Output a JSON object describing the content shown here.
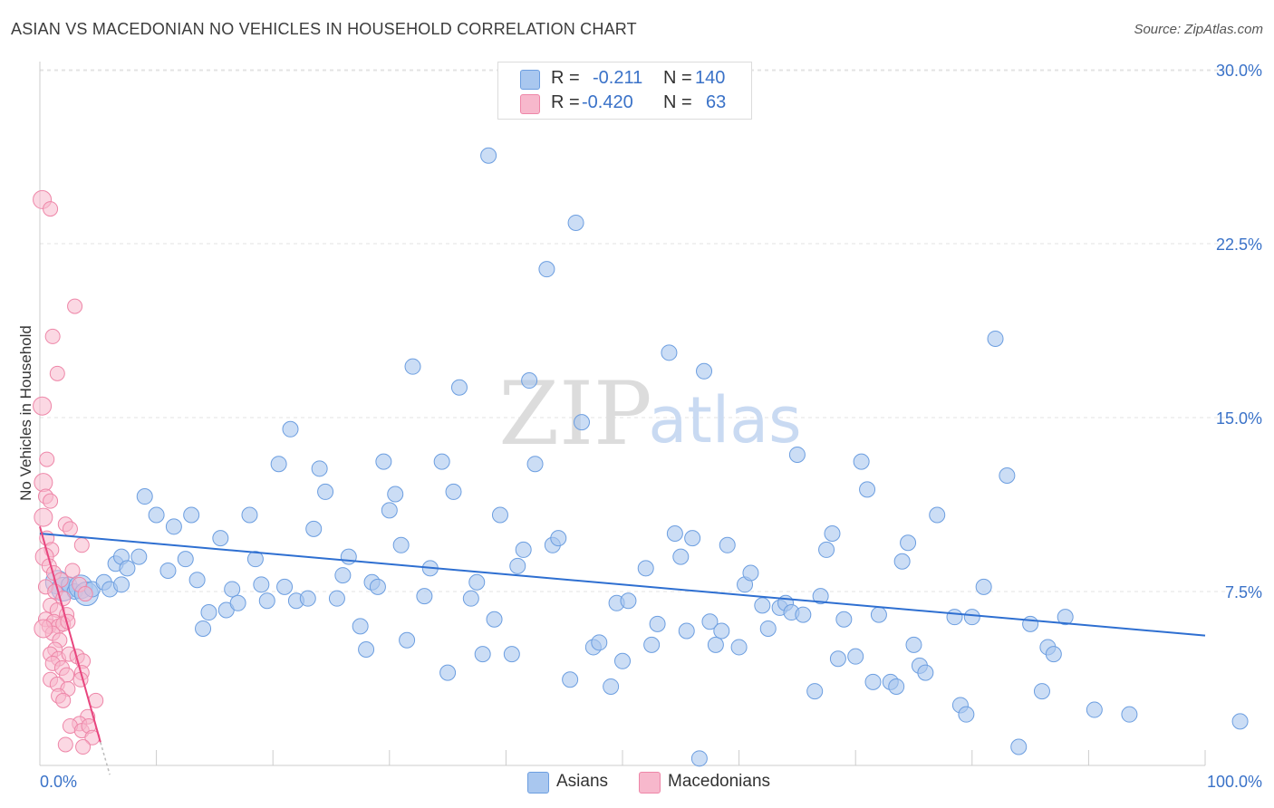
{
  "title": "ASIAN VS MACEDONIAN NO VEHICLES IN HOUSEHOLD CORRELATION CHART",
  "source": "Source: ZipAtlas.com",
  "watermark": {
    "zip": "ZIP",
    "atlas": "atlas"
  },
  "legend": {
    "rows": [
      {
        "r_label": "R =",
        "r_value": "-0.211",
        "n_label": "N =",
        "n_value": "140",
        "color": "#a9c7ef"
      },
      {
        "r_label": "R =",
        "r_value": "-0.420",
        "n_label": "N =",
        "n_value": "63",
        "color": "#f7b8cc"
      }
    ]
  },
  "bottom_legend": [
    {
      "label": "Asians",
      "color": "#a9c7ef"
    },
    {
      "label": "Macedonians",
      "color": "#f7b8cc"
    }
  ],
  "chart_data": {
    "type": "scatter",
    "ylabel": "No Vehicles in Household",
    "xlabel": "",
    "xlim": [
      0,
      100
    ],
    "ylim": [
      0,
      30
    ],
    "x_tick_labels": [
      "0.0%",
      "100.0%"
    ],
    "y_tick_labels": [
      "7.5%",
      "15.0%",
      "22.5%",
      "30.0%"
    ],
    "y_tick_values": [
      7.5,
      15.0,
      22.5,
      30.0
    ],
    "colors": {
      "asians_fill": "#a9c7ef",
      "asians_stroke": "#6c9ee0",
      "asians_line": "#2e6fd1",
      "macedonians_fill": "#f7b8cc",
      "macedonians_stroke": "#ee86a8",
      "macedonians_line": "#e8457e",
      "grid": "#e3e3e3",
      "tick_label": "#3a72c8"
    },
    "series": [
      {
        "name": "Asians",
        "trend": {
          "x": [
            0,
            100
          ],
          "y": [
            10.0,
            5.6
          ]
        },
        "points": [
          [
            1.5,
            7.9
          ],
          [
            2.0,
            7.6
          ],
          [
            2.5,
            7.8
          ],
          [
            3.0,
            7.5
          ],
          [
            3.5,
            7.7
          ],
          [
            4.0,
            7.4
          ],
          [
            4.5,
            7.6
          ],
          [
            5.5,
            7.9
          ],
          [
            6.0,
            7.6
          ],
          [
            7.0,
            7.8
          ],
          [
            6.5,
            8.7
          ],
          [
            7.0,
            9.0
          ],
          [
            7.5,
            8.5
          ],
          [
            8.5,
            9.0
          ],
          [
            9.0,
            11.6
          ],
          [
            10.0,
            10.8
          ],
          [
            11.0,
            8.4
          ],
          [
            11.5,
            10.3
          ],
          [
            12.5,
            8.9
          ],
          [
            13.0,
            10.8
          ],
          [
            13.5,
            8.0
          ],
          [
            14.0,
            5.9
          ],
          [
            14.5,
            6.6
          ],
          [
            15.5,
            9.8
          ],
          [
            16.0,
            6.7
          ],
          [
            16.5,
            7.6
          ],
          [
            17.0,
            7.0
          ],
          [
            18.0,
            10.8
          ],
          [
            18.5,
            8.9
          ],
          [
            19.0,
            7.8
          ],
          [
            19.5,
            7.1
          ],
          [
            20.5,
            13.0
          ],
          [
            21.0,
            7.7
          ],
          [
            21.5,
            14.5
          ],
          [
            22.0,
            7.1
          ],
          [
            23.0,
            7.2
          ],
          [
            23.5,
            10.2
          ],
          [
            24.0,
            12.8
          ],
          [
            24.5,
            11.8
          ],
          [
            25.5,
            7.2
          ],
          [
            26.0,
            8.2
          ],
          [
            26.5,
            9.0
          ],
          [
            27.5,
            6.0
          ],
          [
            28.0,
            5.0
          ],
          [
            28.5,
            7.9
          ],
          [
            29.0,
            7.7
          ],
          [
            29.5,
            13.1
          ],
          [
            30.0,
            11.0
          ],
          [
            30.5,
            11.7
          ],
          [
            31.0,
            9.5
          ],
          [
            31.5,
            5.4
          ],
          [
            32.0,
            17.2
          ],
          [
            33.0,
            7.3
          ],
          [
            33.5,
            8.5
          ],
          [
            34.5,
            13.1
          ],
          [
            35.0,
            4.0
          ],
          [
            35.5,
            11.8
          ],
          [
            36.0,
            16.3
          ],
          [
            37.0,
            7.2
          ],
          [
            37.5,
            7.9
          ],
          [
            38.0,
            4.8
          ],
          [
            38.5,
            26.3
          ],
          [
            39.0,
            6.3
          ],
          [
            39.5,
            10.8
          ],
          [
            40.5,
            4.8
          ],
          [
            41.0,
            8.6
          ],
          [
            41.5,
            9.3
          ],
          [
            42.0,
            16.6
          ],
          [
            42.5,
            13.0
          ],
          [
            43.5,
            21.4
          ],
          [
            44.0,
            9.5
          ],
          [
            44.5,
            9.8
          ],
          [
            45.5,
            3.7
          ],
          [
            46.0,
            23.4
          ],
          [
            46.5,
            14.8
          ],
          [
            47.5,
            5.1
          ],
          [
            48.0,
            5.3
          ],
          [
            49.0,
            3.4
          ],
          [
            49.5,
            7.0
          ],
          [
            50.0,
            4.5
          ],
          [
            50.5,
            7.1
          ],
          [
            52.0,
            8.5
          ],
          [
            52.5,
            5.2
          ],
          [
            53.0,
            6.1
          ],
          [
            54.0,
            17.8
          ],
          [
            54.5,
            10.0
          ],
          [
            55.0,
            9.0
          ],
          [
            55.5,
            5.8
          ],
          [
            56.0,
            9.8
          ],
          [
            57.0,
            17.0
          ],
          [
            57.5,
            6.2
          ],
          [
            58.0,
            5.2
          ],
          [
            58.5,
            5.8
          ],
          [
            59.0,
            9.5
          ],
          [
            60.0,
            5.1
          ],
          [
            60.5,
            7.8
          ],
          [
            61.0,
            8.3
          ],
          [
            62.0,
            6.9
          ],
          [
            62.5,
            5.9
          ],
          [
            63.5,
            6.8
          ],
          [
            64.0,
            7.0
          ],
          [
            64.5,
            6.6
          ],
          [
            65.0,
            13.4
          ],
          [
            65.5,
            6.5
          ],
          [
            66.5,
            3.2
          ],
          [
            67.0,
            7.3
          ],
          [
            67.5,
            9.3
          ],
          [
            68.0,
            10.0
          ],
          [
            68.5,
            4.6
          ],
          [
            69.0,
            6.3
          ],
          [
            70.0,
            4.7
          ],
          [
            70.5,
            13.1
          ],
          [
            71.0,
            11.9
          ],
          [
            71.5,
            3.6
          ],
          [
            72.0,
            6.5
          ],
          [
            73.0,
            3.6
          ],
          [
            73.5,
            3.4
          ],
          [
            74.0,
            8.8
          ],
          [
            74.5,
            9.6
          ],
          [
            75.0,
            5.2
          ],
          [
            75.5,
            4.3
          ],
          [
            76.0,
            4.0
          ],
          [
            77.0,
            10.8
          ],
          [
            78.5,
            6.4
          ],
          [
            79.0,
            2.6
          ],
          [
            79.5,
            2.2
          ],
          [
            80.0,
            6.4
          ],
          [
            81.0,
            7.7
          ],
          [
            82.0,
            18.4
          ],
          [
            83.0,
            12.5
          ],
          [
            84.0,
            0.8
          ],
          [
            85.0,
            6.1
          ],
          [
            86.0,
            3.2
          ],
          [
            86.5,
            5.1
          ],
          [
            87.0,
            4.8
          ],
          [
            88.0,
            6.4
          ],
          [
            90.5,
            2.4
          ],
          [
            93.5,
            2.2
          ],
          [
            103.0,
            1.9
          ],
          [
            56.6,
            0.3
          ]
        ]
      },
      {
        "name": "Macedonians",
        "trend": {
          "x": [
            0,
            5.2
          ],
          "y": [
            10.3,
            1.0
          ],
          "dash_x": [
            5.2,
            6.0
          ],
          "dash_y": [
            1.0,
            -0.4
          ]
        },
        "points": [
          [
            0.2,
            24.4
          ],
          [
            0.9,
            24.0
          ],
          [
            3.0,
            19.8
          ],
          [
            1.1,
            18.5
          ],
          [
            1.5,
            16.9
          ],
          [
            0.2,
            15.5
          ],
          [
            0.6,
            13.2
          ],
          [
            0.3,
            12.2
          ],
          [
            0.5,
            11.6
          ],
          [
            0.9,
            11.4
          ],
          [
            0.3,
            10.7
          ],
          [
            2.2,
            10.4
          ],
          [
            2.6,
            10.2
          ],
          [
            0.6,
            9.8
          ],
          [
            1.0,
            9.3
          ],
          [
            3.6,
            9.5
          ],
          [
            0.4,
            9.0
          ],
          [
            0.8,
            8.6
          ],
          [
            1.2,
            8.3
          ],
          [
            1.8,
            8.0
          ],
          [
            2.8,
            8.4
          ],
          [
            3.4,
            7.8
          ],
          [
            0.5,
            7.7
          ],
          [
            1.3,
            7.5
          ],
          [
            2.0,
            7.2
          ],
          [
            3.9,
            7.4
          ],
          [
            0.9,
            6.9
          ],
          [
            1.5,
            6.7
          ],
          [
            2.3,
            6.5
          ],
          [
            0.5,
            6.3
          ],
          [
            0.8,
            6.0
          ],
          [
            1.2,
            6.2
          ],
          [
            1.6,
            6.0
          ],
          [
            2.0,
            6.1
          ],
          [
            2.4,
            6.2
          ],
          [
            1.1,
            5.7
          ],
          [
            1.7,
            5.4
          ],
          [
            1.3,
            5.0
          ],
          [
            0.9,
            4.8
          ],
          [
            1.6,
            4.6
          ],
          [
            2.5,
            4.8
          ],
          [
            3.2,
            4.7
          ],
          [
            3.7,
            4.5
          ],
          [
            1.1,
            4.4
          ],
          [
            1.9,
            4.2
          ],
          [
            0.9,
            3.7
          ],
          [
            2.3,
            3.9
          ],
          [
            3.6,
            4.0
          ],
          [
            1.5,
            3.5
          ],
          [
            2.4,
            3.3
          ],
          [
            3.5,
            3.7
          ],
          [
            1.6,
            3.0
          ],
          [
            2.0,
            2.8
          ],
          [
            4.8,
            2.8
          ],
          [
            4.1,
            2.1
          ],
          [
            3.4,
            1.8
          ],
          [
            2.6,
            1.7
          ],
          [
            3.6,
            1.5
          ],
          [
            4.2,
            1.7
          ],
          [
            4.5,
            1.2
          ],
          [
            2.2,
            0.9
          ],
          [
            3.7,
            0.8
          ],
          [
            0.3,
            5.9
          ]
        ]
      }
    ]
  }
}
